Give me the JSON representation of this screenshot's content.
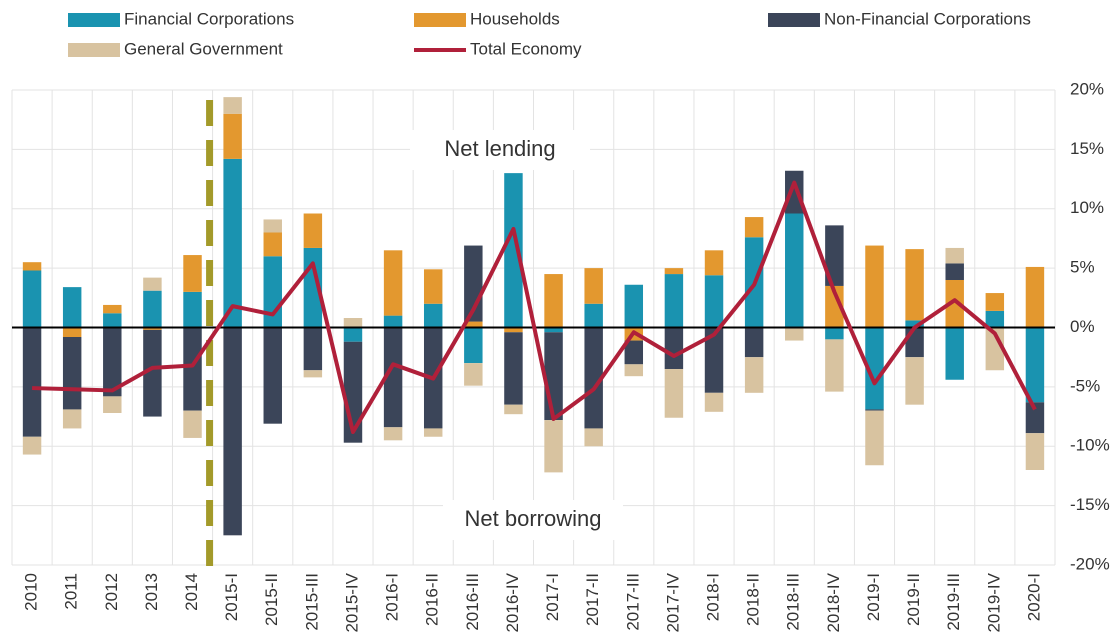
{
  "chart_data": {
    "type": "bar",
    "categories": [
      "2010",
      "2011",
      "2012",
      "2013",
      "2014",
      "2015-I",
      "2015-II",
      "2015-III",
      "2015-IV",
      "2016-I",
      "2016-II",
      "2016-III",
      "2016-IV",
      "2017-I",
      "2017-II",
      "2017-III",
      "2017-IV",
      "2018-I",
      "2018-II",
      "2018-III",
      "2018-IV",
      "2019-I",
      "2019-II",
      "2019-III",
      "2019-IV",
      "2020-I"
    ],
    "series": [
      {
        "name": "Financial Corporations",
        "color": "#1a93b0",
        "values": [
          4.8,
          3.4,
          1.2,
          3.1,
          3.0,
          14.2,
          6.0,
          6.7,
          -1.2,
          1.0,
          2.0,
          -3.0,
          13.0,
          -0.4,
          2.0,
          3.6,
          4.5,
          4.4,
          7.6,
          9.6,
          -1.0,
          -6.9,
          0.6,
          -4.4,
          1.4,
          -6.3
        ]
      },
      {
        "name": "Households",
        "color": "#e3982f",
        "values": [
          0.7,
          -0.8,
          0.7,
          -0.2,
          3.1,
          3.8,
          2.0,
          2.9,
          0,
          5.5,
          2.9,
          0.5,
          -0.4,
          4.5,
          3.0,
          -1.1,
          0.5,
          2.1,
          1.7,
          0,
          3.5,
          6.9,
          6.0,
          4.0,
          1.5,
          5.1
        ]
      },
      {
        "name": "Non-Financial Corporations",
        "color": "#3b4559",
        "values": [
          -9.2,
          -6.1,
          -5.8,
          -7.3,
          -7.0,
          -17.5,
          -8.1,
          -3.6,
          -8.5,
          -8.4,
          -8.5,
          6.4,
          -6.1,
          -7.4,
          -8.5,
          -2.0,
          -3.5,
          -5.5,
          -2.5,
          3.6,
          5.1,
          -0.1,
          -2.5,
          1.4,
          0,
          -2.6
        ]
      },
      {
        "name": "General Government",
        "color": "#d8c3a0",
        "values": [
          -1.5,
          -1.6,
          -1.4,
          1.1,
          -2.3,
          1.4,
          1.1,
          -0.6,
          0.8,
          -1.1,
          -0.7,
          -1.9,
          -0.8,
          -4.4,
          -1.5,
          -1.0,
          -4.1,
          -1.6,
          -3.0,
          -1.1,
          -4.4,
          -4.6,
          -4.0,
          1.3,
          -3.6,
          -3.1
        ]
      },
      {
        "name": "Total Economy",
        "color": "#b0203a",
        "type": "line",
        "values": [
          -5.1,
          -5.2,
          -5.3,
          -3.4,
          -3.2,
          1.8,
          1.1,
          5.4,
          -8.8,
          -3.1,
          -4.3,
          1.5,
          8.3,
          -7.7,
          -5.2,
          -0.4,
          -2.4,
          -0.6,
          3.6,
          12.2,
          3.0,
          -4.7,
          0.0,
          2.3,
          -0.5,
          -6.9
        ]
      }
    ],
    "annotations": [
      "Net lending",
      "Net borrowing"
    ],
    "ylim": [
      -20,
      20
    ],
    "yticks": [
      {
        "value": -20,
        "label": "-20%"
      },
      {
        "value": -15,
        "label": "-15%"
      },
      {
        "value": -10,
        "label": "-10%"
      },
      {
        "value": -5,
        "label": "-5%"
      },
      {
        "value": 0,
        "label": "0%"
      },
      {
        "value": 5,
        "label": "5%"
      },
      {
        "value": 10,
        "label": "10%"
      },
      {
        "value": 15,
        "label": "15%"
      },
      {
        "value": 20,
        "label": "20%"
      }
    ],
    "grid": true
  }
}
